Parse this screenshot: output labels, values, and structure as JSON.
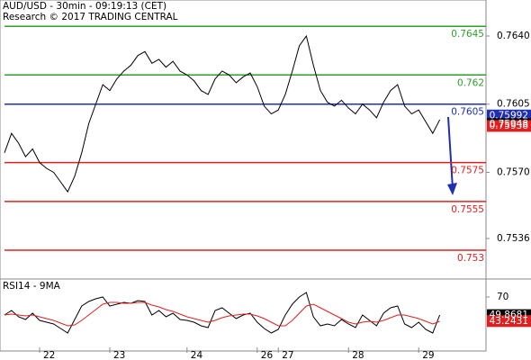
{
  "chart_data": [
    {
      "type": "line",
      "title": "AUD/USD - 30min - 09:19:13 (CET)",
      "subtitle": "Research © 2017 TRADING CENTRAL",
      "categories": [
        null,
        null,
        null,
        null,
        null,
        "22",
        null,
        null,
        null,
        null,
        null,
        null,
        null,
        null,
        null,
        "23",
        null,
        null,
        null,
        null,
        null,
        null,
        null,
        null,
        null,
        null,
        "24",
        null,
        null,
        null,
        null,
        null,
        null,
        null,
        null,
        null,
        "26",
        null,
        null,
        "27",
        null,
        null,
        null,
        null,
        null,
        null,
        null,
        null,
        null,
        "28",
        null,
        null,
        null,
        null,
        null,
        null,
        null,
        null,
        null,
        "29",
        null,
        null,
        null
      ],
      "series": [
        {
          "color": "#000000",
          "values": [
            0.758,
            0.759,
            0.7585,
            0.7578,
            0.7582,
            0.7575,
            0.7572,
            0.757,
            0.7565,
            0.756,
            0.7568,
            0.758,
            0.7595,
            0.7605,
            0.7615,
            0.7612,
            0.7618,
            0.7622,
            0.7625,
            0.763,
            0.7632,
            0.7626,
            0.7628,
            0.7624,
            0.7627,
            0.7622,
            0.762,
            0.7617,
            0.7612,
            0.761,
            0.7618,
            0.7622,
            0.762,
            0.7616,
            0.7619,
            0.7621,
            0.7614,
            0.7604,
            0.76,
            0.7602,
            0.761,
            0.7622,
            0.7635,
            0.764,
            0.7625,
            0.7612,
            0.7606,
            0.7604,
            0.7607,
            0.7603,
            0.76,
            0.7605,
            0.7602,
            0.7598,
            0.7606,
            0.7612,
            0.7615,
            0.7604,
            0.76,
            0.7602,
            0.7596,
            0.759,
            0.7597
          ]
        }
      ],
      "ylim": [
        0.75152,
        0.76585
      ],
      "yticks": [
        {
          "value": 0.764,
          "label": "0.7640"
        },
        0.7605,
        {
          "value": 0.757,
          "label": "0.7570"
        },
        0.7536
      ],
      "levels": [
        {
          "value": 0.7645,
          "color": "#2e9e2e"
        },
        {
          "value": 0.762,
          "color": "#2e9e2e"
        },
        {
          "value": 0.7605,
          "color": "#1f2fb0"
        },
        {
          "value": 0.7575,
          "color": "#e02020"
        },
        {
          "value": 0.7555,
          "color": "#e02020"
        },
        {
          "value": 0.753,
          "color": "#e02020"
        }
      ],
      "price_tags": [
        {
          "value": 0.75992,
          "color": "#1f2fb0"
        },
        {
          "value": 0.75948,
          "color": "#000000"
        },
        {
          "value": 0.75938,
          "color": "#e02020"
        }
      ]
    },
    {
      "type": "line",
      "title": "RSI14 - 9MA",
      "series": [
        {
          "color": "#000000",
          "values": [
            50,
            55,
            48,
            45,
            52,
            44,
            42,
            40,
            35,
            30,
            45,
            60,
            65,
            68,
            70,
            60,
            62,
            64,
            63,
            66,
            65,
            50,
            55,
            48,
            52,
            45,
            44,
            42,
            38,
            36,
            55,
            58,
            52,
            46,
            50,
            52,
            42,
            35,
            30,
            34,
            50,
            62,
            70,
            75,
            48,
            38,
            40,
            38,
            45,
            40,
            36,
            50,
            44,
            38,
            52,
            58,
            60,
            40,
            36,
            42,
            34,
            30,
            50
          ]
        },
        {
          "color": "#e02020",
          "values": [
            50,
            51,
            50,
            49,
            50,
            48,
            46,
            44,
            41,
            38,
            39,
            44,
            50,
            56,
            62,
            64,
            64,
            63,
            63,
            64,
            64,
            61,
            59,
            56,
            54,
            51,
            48,
            46,
            44,
            42,
            44,
            47,
            49,
            50,
            51,
            51,
            49,
            46,
            42,
            38,
            38,
            44,
            52,
            60,
            62,
            58,
            54,
            50,
            46,
            42,
            40,
            42,
            43,
            42,
            44,
            47,
            50,
            50,
            48,
            46,
            43,
            40,
            43
          ]
        }
      ],
      "ylim": [
        10,
        90
      ],
      "yticks": [
        70
      ],
      "price_tags": [
        {
          "value": 49.8681,
          "color": "#000000"
        },
        {
          "value": 43.2431,
          "color": "#e02020"
        }
      ]
    }
  ]
}
